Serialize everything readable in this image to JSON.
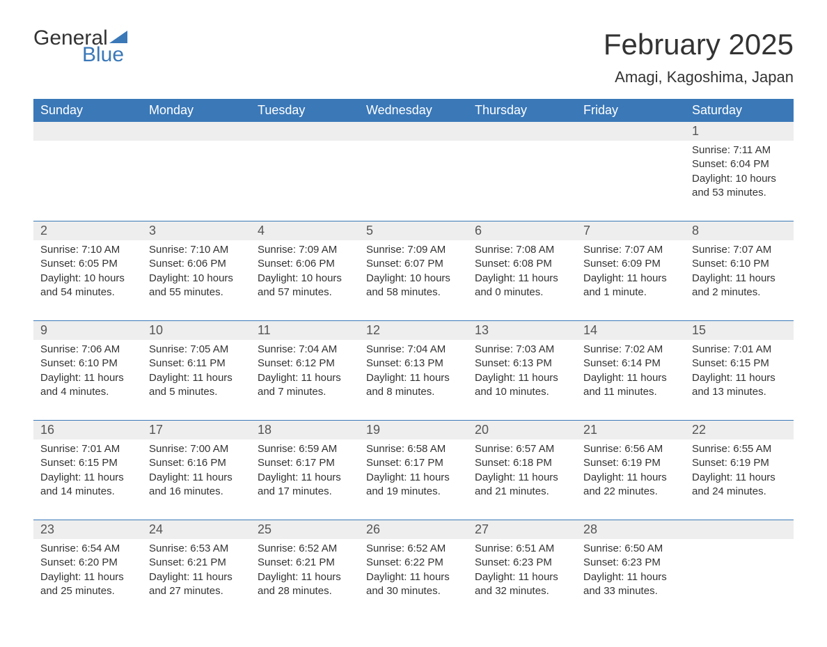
{
  "brand": {
    "general": "General",
    "blue": "Blue"
  },
  "title": "February 2025",
  "location": "Amagi, Kagoshima, Japan",
  "colors": {
    "header_bg": "#3a78b8",
    "header_text": "#ffffff",
    "daynum_bg": "#eeeeee",
    "row_border": "#3a78b8",
    "text": "#333333",
    "background": "#ffffff"
  },
  "columns": [
    "Sunday",
    "Monday",
    "Tuesday",
    "Wednesday",
    "Thursday",
    "Friday",
    "Saturday"
  ],
  "weeks": [
    [
      null,
      null,
      null,
      null,
      null,
      null,
      {
        "n": "1",
        "sr": "7:11 AM",
        "ss": "6:04 PM",
        "dl": "10 hours and 53 minutes."
      }
    ],
    [
      {
        "n": "2",
        "sr": "7:10 AM",
        "ss": "6:05 PM",
        "dl": "10 hours and 54 minutes."
      },
      {
        "n": "3",
        "sr": "7:10 AM",
        "ss": "6:06 PM",
        "dl": "10 hours and 55 minutes."
      },
      {
        "n": "4",
        "sr": "7:09 AM",
        "ss": "6:06 PM",
        "dl": "10 hours and 57 minutes."
      },
      {
        "n": "5",
        "sr": "7:09 AM",
        "ss": "6:07 PM",
        "dl": "10 hours and 58 minutes."
      },
      {
        "n": "6",
        "sr": "7:08 AM",
        "ss": "6:08 PM",
        "dl": "11 hours and 0 minutes."
      },
      {
        "n": "7",
        "sr": "7:07 AM",
        "ss": "6:09 PM",
        "dl": "11 hours and 1 minute."
      },
      {
        "n": "8",
        "sr": "7:07 AM",
        "ss": "6:10 PM",
        "dl": "11 hours and 2 minutes."
      }
    ],
    [
      {
        "n": "9",
        "sr": "7:06 AM",
        "ss": "6:10 PM",
        "dl": "11 hours and 4 minutes."
      },
      {
        "n": "10",
        "sr": "7:05 AM",
        "ss": "6:11 PM",
        "dl": "11 hours and 5 minutes."
      },
      {
        "n": "11",
        "sr": "7:04 AM",
        "ss": "6:12 PM",
        "dl": "11 hours and 7 minutes."
      },
      {
        "n": "12",
        "sr": "7:04 AM",
        "ss": "6:13 PM",
        "dl": "11 hours and 8 minutes."
      },
      {
        "n": "13",
        "sr": "7:03 AM",
        "ss": "6:13 PM",
        "dl": "11 hours and 10 minutes."
      },
      {
        "n": "14",
        "sr": "7:02 AM",
        "ss": "6:14 PM",
        "dl": "11 hours and 11 minutes."
      },
      {
        "n": "15",
        "sr": "7:01 AM",
        "ss": "6:15 PM",
        "dl": "11 hours and 13 minutes."
      }
    ],
    [
      {
        "n": "16",
        "sr": "7:01 AM",
        "ss": "6:15 PM",
        "dl": "11 hours and 14 minutes."
      },
      {
        "n": "17",
        "sr": "7:00 AM",
        "ss": "6:16 PM",
        "dl": "11 hours and 16 minutes."
      },
      {
        "n": "18",
        "sr": "6:59 AM",
        "ss": "6:17 PM",
        "dl": "11 hours and 17 minutes."
      },
      {
        "n": "19",
        "sr": "6:58 AM",
        "ss": "6:17 PM",
        "dl": "11 hours and 19 minutes."
      },
      {
        "n": "20",
        "sr": "6:57 AM",
        "ss": "6:18 PM",
        "dl": "11 hours and 21 minutes."
      },
      {
        "n": "21",
        "sr": "6:56 AM",
        "ss": "6:19 PM",
        "dl": "11 hours and 22 minutes."
      },
      {
        "n": "22",
        "sr": "6:55 AM",
        "ss": "6:19 PM",
        "dl": "11 hours and 24 minutes."
      }
    ],
    [
      {
        "n": "23",
        "sr": "6:54 AM",
        "ss": "6:20 PM",
        "dl": "11 hours and 25 minutes."
      },
      {
        "n": "24",
        "sr": "6:53 AM",
        "ss": "6:21 PM",
        "dl": "11 hours and 27 minutes."
      },
      {
        "n": "25",
        "sr": "6:52 AM",
        "ss": "6:21 PM",
        "dl": "11 hours and 28 minutes."
      },
      {
        "n": "26",
        "sr": "6:52 AM",
        "ss": "6:22 PM",
        "dl": "11 hours and 30 minutes."
      },
      {
        "n": "27",
        "sr": "6:51 AM",
        "ss": "6:23 PM",
        "dl": "11 hours and 32 minutes."
      },
      {
        "n": "28",
        "sr": "6:50 AM",
        "ss": "6:23 PM",
        "dl": "11 hours and 33 minutes."
      },
      null
    ]
  ],
  "labels": {
    "sunrise": "Sunrise: ",
    "sunset": "Sunset: ",
    "daylight": "Daylight: "
  }
}
